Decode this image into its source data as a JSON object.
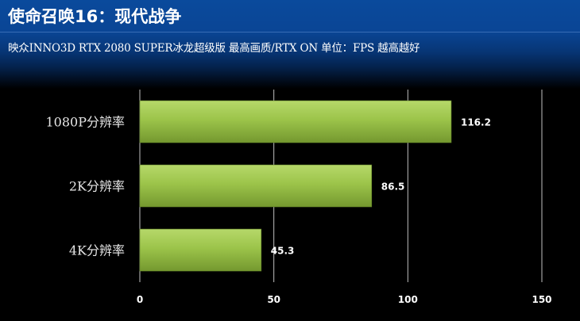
{
  "header": {
    "title": "使命召唤16：现代战争",
    "subtitle": "映众INNO3D RTX 2080 SUPER冰龙超级版  最高画质/RTX ON 单位：FPS 越高越好"
  },
  "chart_data": {
    "type": "bar",
    "orientation": "horizontal",
    "title": "使命召唤16：现代战争",
    "subtitle": "映众INNO3D RTX 2080 SUPER冰龙超级版  最高画质/RTX ON 单位：FPS 越高越好",
    "categories": [
      "1080P分辨率",
      "2K分辨率",
      "4K分辨率"
    ],
    "values": [
      116.2,
      86.5,
      45.3
    ],
    "value_labels": [
      "116.2",
      "86.5",
      "45.3"
    ],
    "xlim": [
      0,
      150
    ],
    "xticks": [
      0,
      50,
      100,
      150
    ],
    "tick_labels": [
      "0",
      "50",
      "100",
      "150"
    ],
    "xlabel": "",
    "ylabel": "",
    "grid": true,
    "legend": "none",
    "bar_color": "#9bc44a",
    "bar_color_dark": "#6d922a"
  }
}
